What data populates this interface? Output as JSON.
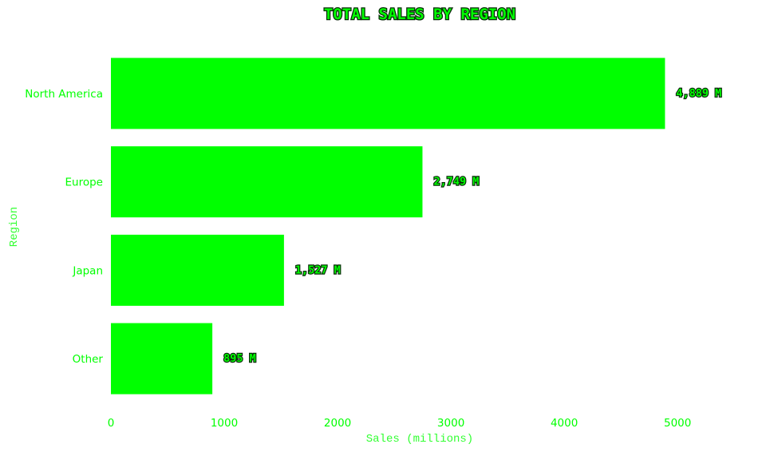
{
  "chart_data": {
    "type": "bar",
    "orientation": "horizontal",
    "title": "TOTAL SALES BY REGION",
    "xlabel": "Sales (millions)",
    "ylabel": "Region",
    "categories": [
      "North America",
      "Europe",
      "Japan",
      "Other"
    ],
    "values": [
      4889,
      2749,
      1527,
      895
    ],
    "data_labels": [
      "4,889 M",
      "2,749 M",
      "1,527 M",
      "895 M"
    ],
    "x_ticks": [
      0,
      1000,
      2000,
      3000,
      4000,
      5000
    ],
    "xlim": [
      0,
      5400
    ],
    "grid": false,
    "legend": "none",
    "colors": {
      "bar": "#00ff00",
      "text": "#00ff00",
      "outline": "#0a2a0a",
      "background": "#ffffff"
    }
  }
}
